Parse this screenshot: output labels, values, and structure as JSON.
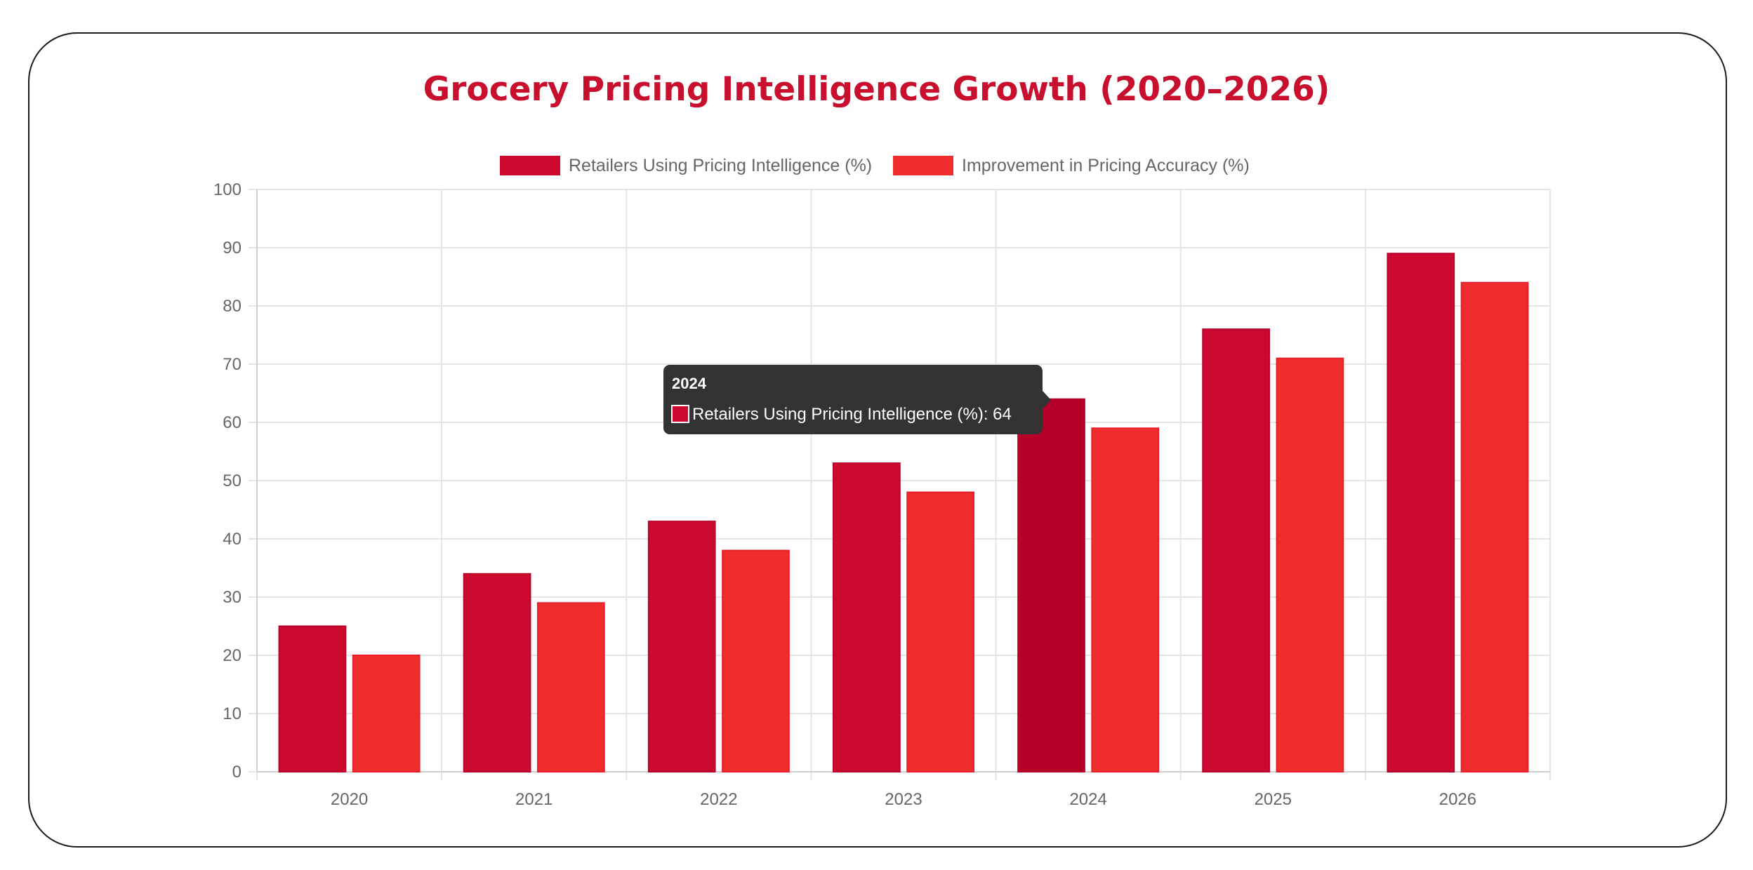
{
  "chart_data": {
    "type": "bar",
    "title": "Grocery Pricing Intelligence Growth (2020–2026)",
    "categories": [
      "2020",
      "2021",
      "2022",
      "2023",
      "2024",
      "2025",
      "2026"
    ],
    "series": [
      {
        "name": "Retailers Using Pricing Intelligence (%)",
        "values": [
          25,
          34,
          43,
          53,
          64,
          76,
          89
        ],
        "color": "#cc0a30"
      },
      {
        "name": "Improvement in Pricing Accuracy (%)",
        "values": [
          20,
          29,
          38,
          48,
          59,
          71,
          84
        ],
        "color": "#ef2d2d"
      }
    ],
    "ylim": [
      0,
      100
    ],
    "yticks": [
      "0",
      "10",
      "20",
      "30",
      "40",
      "50",
      "60",
      "70",
      "80",
      "90",
      "100"
    ],
    "grid": true,
    "legend_position": "top",
    "title_color": "#c8102e",
    "hover_color": "#b5002a",
    "tooltip": {
      "title": "2024",
      "label": "Retailers Using Pricing Intelligence (%): 64",
      "series_index": 0,
      "category_index": 4
    }
  }
}
